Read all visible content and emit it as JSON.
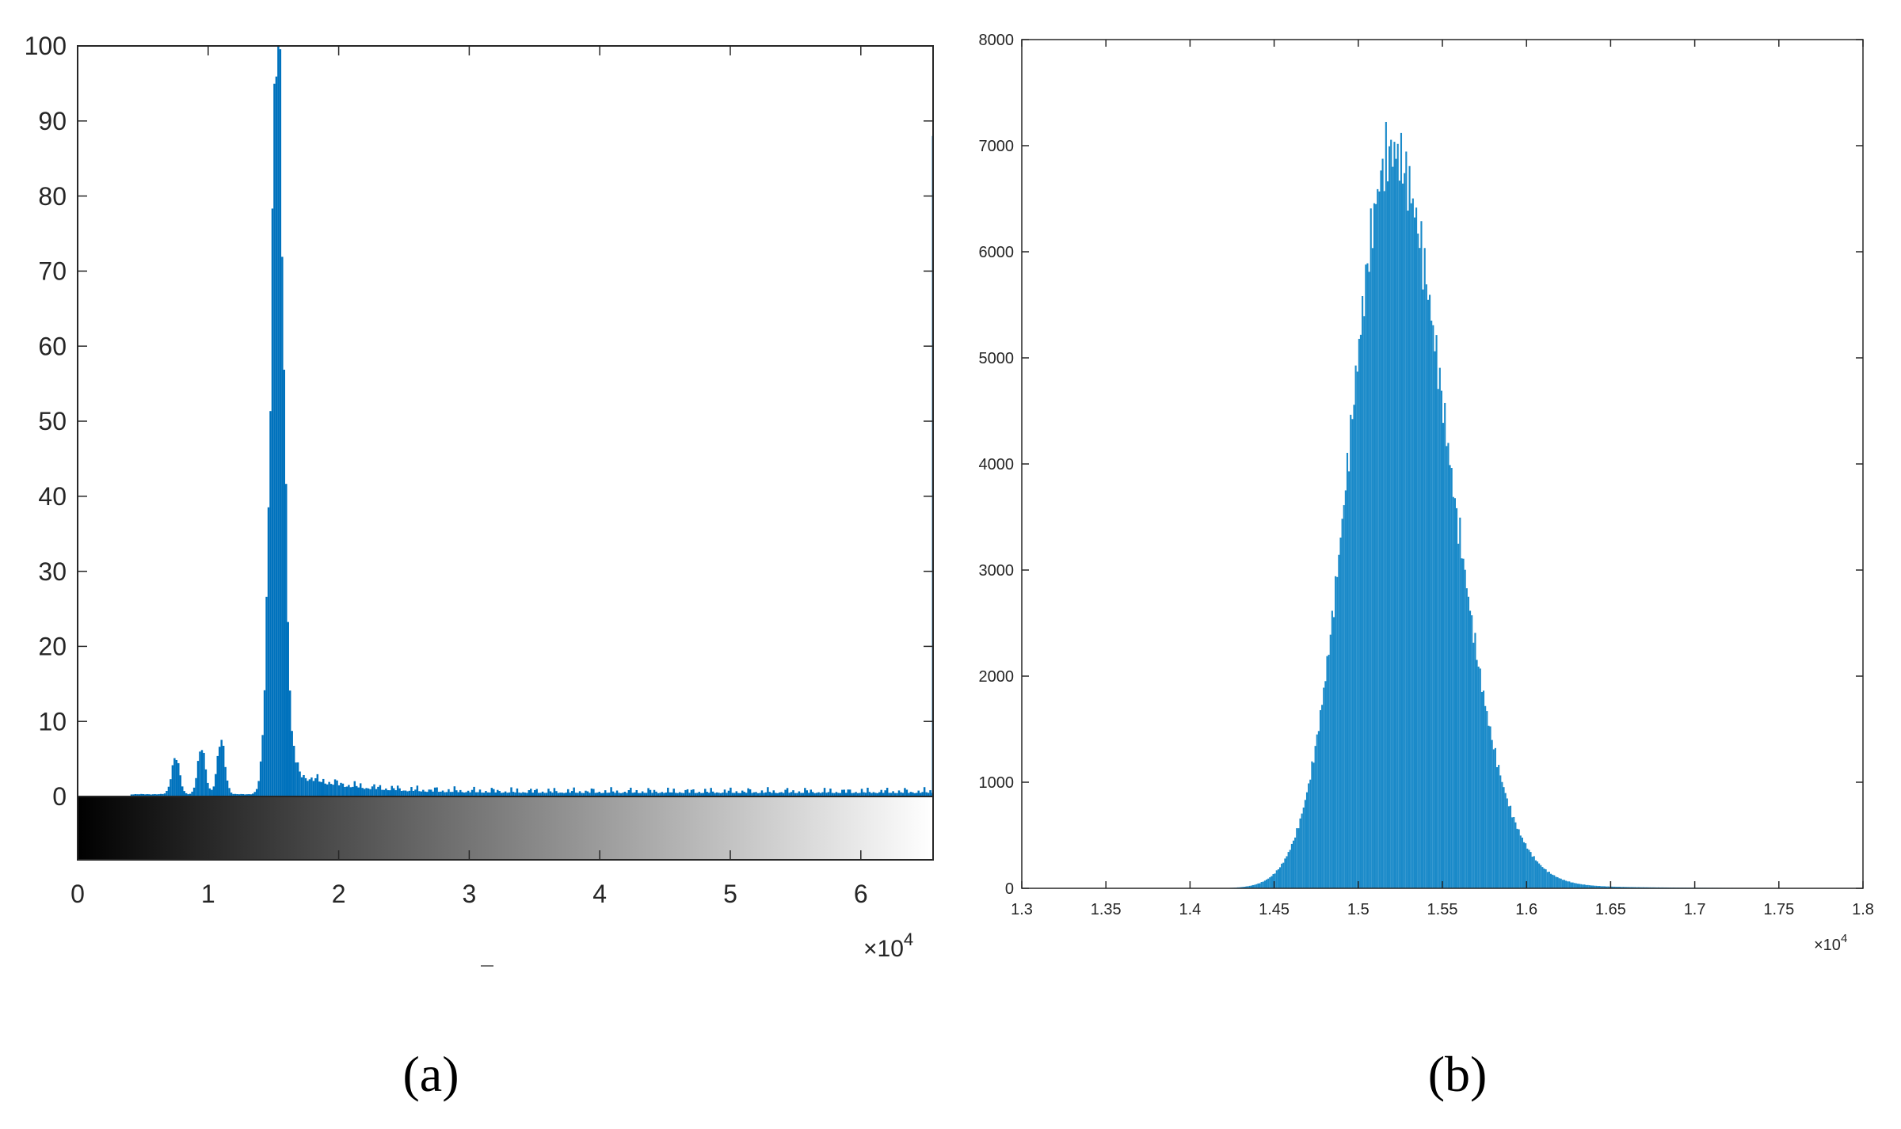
{
  "panels": {
    "a": {
      "label": "(a)"
    },
    "b": {
      "label": "(b)"
    }
  },
  "colors": {
    "bar": "#0072BD",
    "bar_b": "#1a8ac9",
    "axis": "#262626"
  },
  "chart_data": [
    {
      "type": "bar",
      "panel": "a",
      "title": "",
      "xlabel": "",
      "ylabel": "",
      "xlim": [
        0,
        65535
      ],
      "ylim": [
        0,
        100
      ],
      "x_exponent": "×10^4",
      "x_exponent_base": "×10",
      "x_exponent_power": "4",
      "xticks": [
        0,
        10000,
        20000,
        30000,
        40000,
        50000,
        60000
      ],
      "xtick_labels": [
        "0",
        "1",
        "2",
        "3",
        "4",
        "5",
        "6"
      ],
      "yticks": [
        0,
        10,
        20,
        30,
        40,
        50,
        60,
        70,
        80,
        90,
        100
      ],
      "ytick_labels": [
        "0",
        "10",
        "20",
        "30",
        "40",
        "50",
        "60",
        "70",
        "80",
        "90",
        "100"
      ],
      "colorbar": "grayscale gradient, black to white",
      "grid": false,
      "bin_width": 150,
      "peaks": [
        {
          "center": 7500,
          "sigma": 300,
          "height": 5
        },
        {
          "center": 9500,
          "sigma": 300,
          "height": 6
        },
        {
          "center": 11000,
          "sigma": 300,
          "height": 7
        },
        {
          "center": 15300,
          "sigma": 500,
          "height": 100
        }
      ],
      "tail": {
        "start": 16500,
        "level": 2.5,
        "decay": 4000,
        "floor": 0.5
      },
      "edge_bin": {
        "x": 65450,
        "value": 88
      }
    },
    {
      "type": "bar",
      "panel": "b",
      "title": "",
      "xlabel": "",
      "ylabel": "",
      "xlim": [
        13000,
        18000
      ],
      "ylim": [
        0,
        8000
      ],
      "x_exponent": "×10^4",
      "x_exponent_base": "×10",
      "x_exponent_power": "4",
      "xticks": [
        13000,
        13500,
        14000,
        14500,
        15000,
        15500,
        16000,
        16500,
        17000,
        17500,
        18000
      ],
      "xtick_labels": [
        "1.3",
        "1.35",
        "1.4",
        "1.45",
        "1.5",
        "1.55",
        "1.6",
        "1.65",
        "1.7",
        "1.75",
        "1.8"
      ],
      "yticks": [
        0,
        1000,
        2000,
        3000,
        4000,
        5000,
        6000,
        7000,
        8000
      ],
      "ytick_labels": [
        "0",
        "1000",
        "2000",
        "3000",
        "4000",
        "5000",
        "6000",
        "7000",
        "8000"
      ],
      "grid": false,
      "distribution": {
        "mean": 15200,
        "sigma_left": 250,
        "sigma_right": 330,
        "peak": 6950,
        "start": 14200,
        "end": 17500
      },
      "bin_width": 10
    }
  ]
}
